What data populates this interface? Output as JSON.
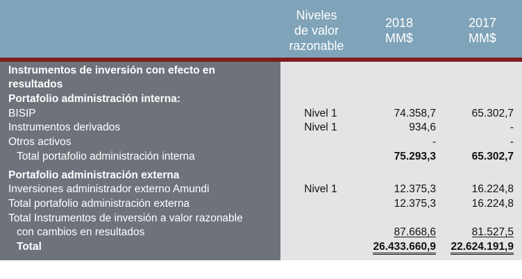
{
  "headers": {
    "niveles": [
      "Niveles",
      "de valor",
      "razonable"
    ],
    "y2018": [
      "2018",
      "MM$"
    ],
    "y2017": [
      "2017",
      "MM$"
    ]
  },
  "rows": {
    "section_title_1": "Instrumentos de inversión con efecto en",
    "section_title_2": "resultados",
    "interna_header": "Portafolio administración interna:",
    "bisip": {
      "label": "BISIP",
      "nivel": "Nivel 1",
      "v2018": "74.358,7",
      "v2017": "65.302,7"
    },
    "derivados": {
      "label": "Instrumentos derivados",
      "nivel": "Nivel 1",
      "v2018": "934,6",
      "v2017": "-"
    },
    "otros": {
      "label": "Otros activos",
      "v2018": "-",
      "v2017": "-"
    },
    "total_interna": {
      "label": "Total portafolio administración interna",
      "v2018": "75.293,3",
      "v2017": "65.302,7"
    },
    "externa_header": "Portafolio administración externa",
    "amundi": {
      "label": "Inversiones administrador externo Amundi",
      "nivel": "Nivel 1",
      "v2018": "12.375,3",
      "v2017": "16.224,8"
    },
    "total_externa": {
      "label": "Total portafolio administración externa",
      "v2018": "12.375,3",
      "v2017": "16.224,8"
    },
    "total_instrumentos": {
      "label_1": "Total Instrumentos de inversión a valor razonable",
      "label_2": "con cambios en resultados",
      "v2018": "87.668,6",
      "v2017": "81.527,5"
    },
    "total": {
      "label": "Total",
      "v2018": "26.433.660,9",
      "v2017": "22.624.191,9"
    }
  }
}
